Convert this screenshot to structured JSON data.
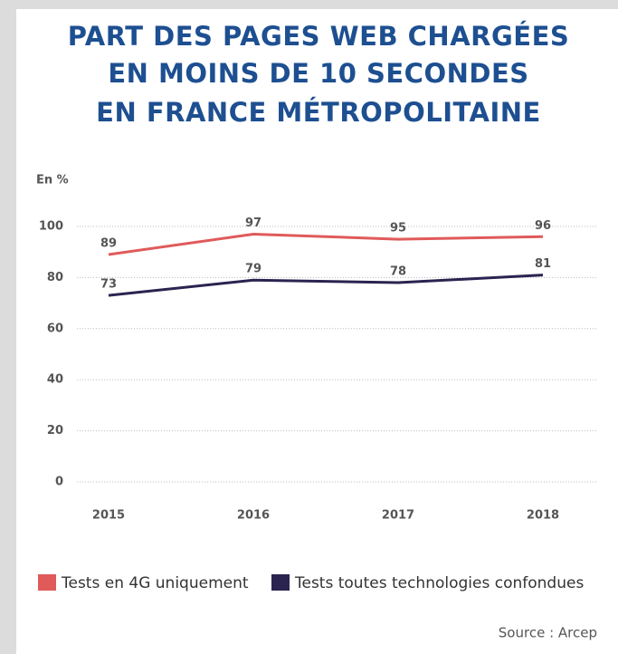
{
  "chart_data": {
    "type": "line",
    "title": [
      "PART DES PAGES WEB CHARGÉES",
      "EN MOINS DE 10 SECONDES",
      "EN FRANCE MÉTROPOLITAINE"
    ],
    "y_label": "En %",
    "categories": [
      "2015",
      "2016",
      "2017",
      "2018"
    ],
    "series": [
      {
        "name": "Tests en 4G uniquement",
        "color": "#e05a5a",
        "values": [
          89,
          97,
          95,
          96
        ]
      },
      {
        "name": "Tests toutes technologies confondues",
        "color": "#2b2350",
        "values": [
          73,
          79,
          78,
          81
        ]
      }
    ],
    "ylim": [
      0,
      100
    ],
    "yticks": [
      0,
      20,
      40,
      60,
      80,
      100
    ],
    "grid": true,
    "legend": "bottom",
    "source": "Source : Arcep"
  }
}
